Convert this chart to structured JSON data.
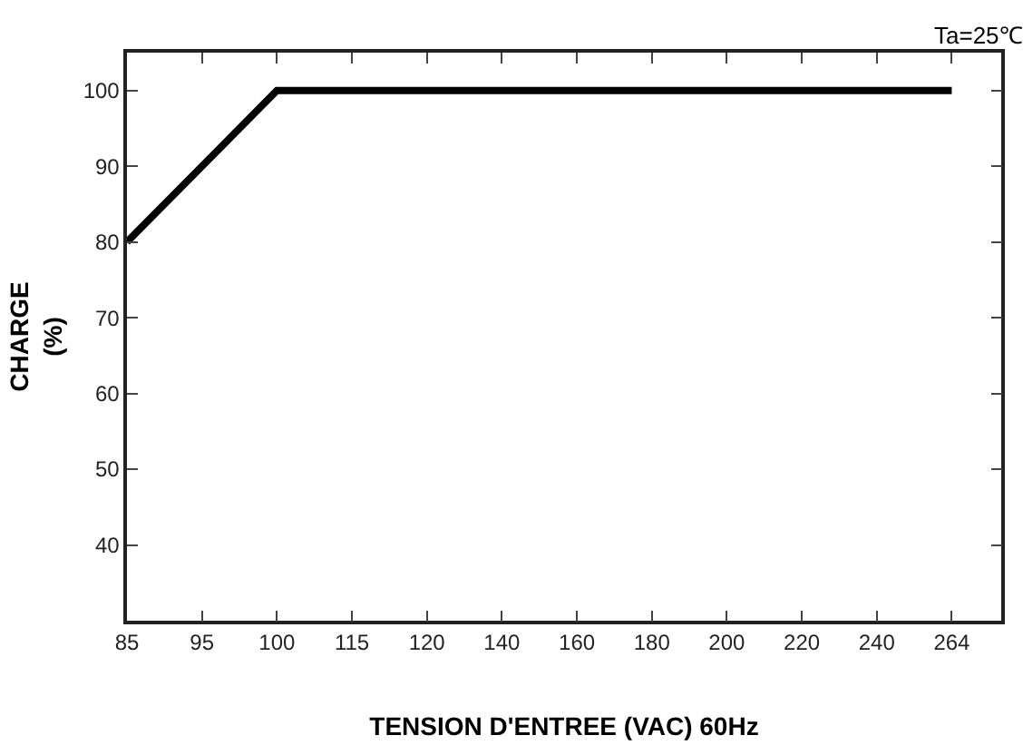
{
  "chart_data": {
    "type": "line",
    "xlabel": "TENSION D'ENTREE (VAC) 60Hz",
    "ylabel": "CHARGE\n(%)",
    "categories": [
      "85",
      "95",
      "100",
      "115",
      "120",
      "140",
      "160",
      "180",
      "200",
      "220",
      "240",
      "264"
    ],
    "series": [
      {
        "color": "#000000",
        "values": [
          80,
          90,
          100,
          100,
          100,
          100,
          100,
          100,
          100,
          100,
          100,
          100
        ]
      }
    ],
    "ylim": [
      30,
      105
    ],
    "yticks": [
      40,
      50,
      60,
      70,
      80,
      90,
      100
    ],
    "annotations": [
      "Ta=25℃"
    ],
    "marker": "none",
    "line_style": "solid"
  }
}
